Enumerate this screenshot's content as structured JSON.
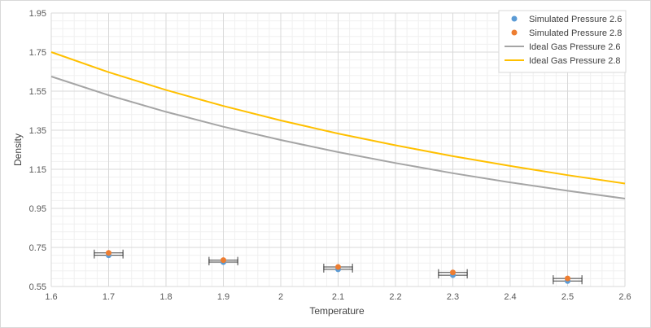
{
  "colors": {
    "series_26": "#5b9bd5",
    "series_28": "#ed7d31",
    "ideal_26": "#a5a5a5",
    "ideal_28": "#ffc000",
    "grid_major": "#d9d9d9",
    "grid_minor": "#f0f0f0",
    "error_bar": "#404040"
  },
  "chart_data": {
    "type": "scatter",
    "title": "",
    "xlabel": "Temperature",
    "ylabel": "Density",
    "xlim": [
      1.6,
      2.6
    ],
    "ylim": [
      0.55,
      1.95
    ],
    "x_ticks": [
      "1.6",
      "1.7",
      "1.8",
      "1.9",
      "2",
      "2.1",
      "2.2",
      "2.3",
      "2.4",
      "2.5",
      "2.6"
    ],
    "y_ticks": [
      "0.55",
      "0.75",
      "0.95",
      "1.15",
      "1.35",
      "1.55",
      "1.75",
      "1.95"
    ],
    "grid": true,
    "minor_grid": true,
    "legend_position": "top-right",
    "series": [
      {
        "name": "Simulated Pressure 2.6",
        "kind": "points",
        "color_key": "series_26",
        "x": [
          1.7,
          1.9,
          2.1,
          2.3,
          2.5
        ],
        "y": [
          0.71,
          0.675,
          0.638,
          0.608,
          0.578
        ],
        "x_error": 0.025
      },
      {
        "name": "Simulated Pressure 2.8",
        "kind": "points",
        "color_key": "series_28",
        "x": [
          1.7,
          1.9,
          2.1,
          2.3,
          2.5
        ],
        "y": [
          0.722,
          0.685,
          0.65,
          0.622,
          0.591
        ],
        "x_error": 0.025
      },
      {
        "name": "Ideal Gas Pressure 2.6",
        "kind": "line",
        "color_key": "ideal_26",
        "x": [
          1.6,
          1.7,
          1.8,
          1.9,
          2.0,
          2.1,
          2.2,
          2.3,
          2.4,
          2.5,
          2.6
        ],
        "y": [
          1.625,
          1.529,
          1.444,
          1.368,
          1.3,
          1.238,
          1.182,
          1.13,
          1.083,
          1.04,
          1.0
        ]
      },
      {
        "name": "Ideal Gas Pressure 2.8",
        "kind": "line",
        "color_key": "ideal_28",
        "x": [
          1.6,
          1.7,
          1.8,
          1.9,
          2.0,
          2.1,
          2.2,
          2.3,
          2.4,
          2.5,
          2.6
        ],
        "y": [
          1.75,
          1.647,
          1.556,
          1.474,
          1.4,
          1.333,
          1.273,
          1.217,
          1.167,
          1.12,
          1.077
        ]
      }
    ]
  }
}
